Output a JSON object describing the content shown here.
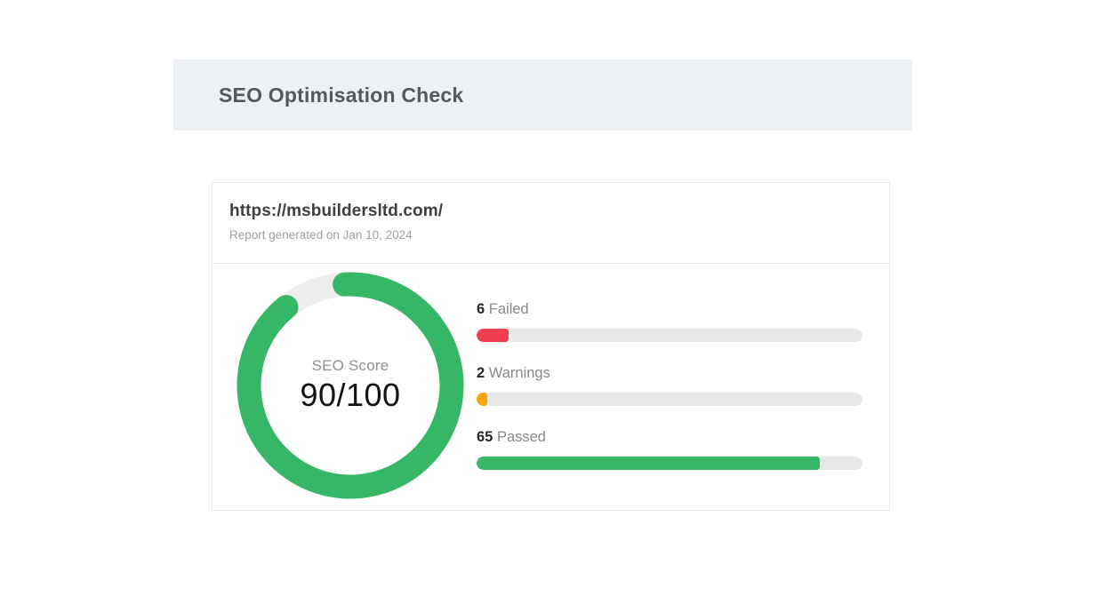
{
  "page": {
    "title": "SEO Optimisation Check"
  },
  "report": {
    "url": "https://msbuildersltd.com/",
    "generated": "Report generated on Jan 10, 2024",
    "score": {
      "label": "SEO Score",
      "value": "90/100",
      "percent": 90
    },
    "metrics": [
      {
        "count": "6",
        "label": "Failed",
        "percent": 8.2,
        "color": "#ef3e4e"
      },
      {
        "count": "2",
        "label": "Warnings",
        "percent": 2.7,
        "color": "#fca40d"
      },
      {
        "count": "65",
        "label": "Passed",
        "percent": 89,
        "color": "#35b765"
      }
    ]
  },
  "colors": {
    "header_band": "#edf0f5",
    "green": "#35b765",
    "ring_track": "#ededed",
    "bar_track": "#e7e8ea"
  }
}
